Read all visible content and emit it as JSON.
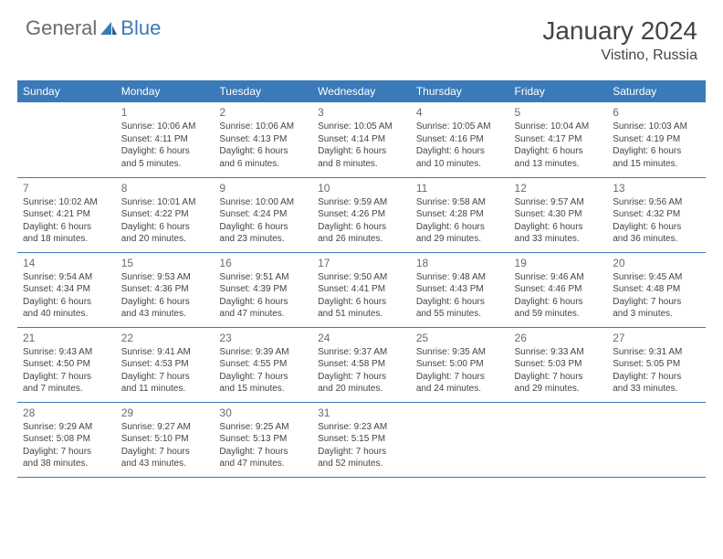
{
  "brand": {
    "name_a": "General",
    "name_b": "Blue"
  },
  "header": {
    "title": "January 2024",
    "location": "Vistino, Russia"
  },
  "colors": {
    "accent": "#3a7ab8",
    "text": "#444444",
    "muted": "#6b6b6b",
    "bg": "#ffffff"
  },
  "days": [
    "Sunday",
    "Monday",
    "Tuesday",
    "Wednesday",
    "Thursday",
    "Friday",
    "Saturday"
  ],
  "cells": [
    {
      "d": "",
      "l1": "",
      "l2": "",
      "l3": "",
      "l4": ""
    },
    {
      "d": "1",
      "l1": "Sunrise: 10:06 AM",
      "l2": "Sunset: 4:11 PM",
      "l3": "Daylight: 6 hours",
      "l4": "and 5 minutes."
    },
    {
      "d": "2",
      "l1": "Sunrise: 10:06 AM",
      "l2": "Sunset: 4:13 PM",
      "l3": "Daylight: 6 hours",
      "l4": "and 6 minutes."
    },
    {
      "d": "3",
      "l1": "Sunrise: 10:05 AM",
      "l2": "Sunset: 4:14 PM",
      "l3": "Daylight: 6 hours",
      "l4": "and 8 minutes."
    },
    {
      "d": "4",
      "l1": "Sunrise: 10:05 AM",
      "l2": "Sunset: 4:16 PM",
      "l3": "Daylight: 6 hours",
      "l4": "and 10 minutes."
    },
    {
      "d": "5",
      "l1": "Sunrise: 10:04 AM",
      "l2": "Sunset: 4:17 PM",
      "l3": "Daylight: 6 hours",
      "l4": "and 13 minutes."
    },
    {
      "d": "6",
      "l1": "Sunrise: 10:03 AM",
      "l2": "Sunset: 4:19 PM",
      "l3": "Daylight: 6 hours",
      "l4": "and 15 minutes."
    },
    {
      "d": "7",
      "l1": "Sunrise: 10:02 AM",
      "l2": "Sunset: 4:21 PM",
      "l3": "Daylight: 6 hours",
      "l4": "and 18 minutes."
    },
    {
      "d": "8",
      "l1": "Sunrise: 10:01 AM",
      "l2": "Sunset: 4:22 PM",
      "l3": "Daylight: 6 hours",
      "l4": "and 20 minutes."
    },
    {
      "d": "9",
      "l1": "Sunrise: 10:00 AM",
      "l2": "Sunset: 4:24 PM",
      "l3": "Daylight: 6 hours",
      "l4": "and 23 minutes."
    },
    {
      "d": "10",
      "l1": "Sunrise: 9:59 AM",
      "l2": "Sunset: 4:26 PM",
      "l3": "Daylight: 6 hours",
      "l4": "and 26 minutes."
    },
    {
      "d": "11",
      "l1": "Sunrise: 9:58 AM",
      "l2": "Sunset: 4:28 PM",
      "l3": "Daylight: 6 hours",
      "l4": "and 29 minutes."
    },
    {
      "d": "12",
      "l1": "Sunrise: 9:57 AM",
      "l2": "Sunset: 4:30 PM",
      "l3": "Daylight: 6 hours",
      "l4": "and 33 minutes."
    },
    {
      "d": "13",
      "l1": "Sunrise: 9:56 AM",
      "l2": "Sunset: 4:32 PM",
      "l3": "Daylight: 6 hours",
      "l4": "and 36 minutes."
    },
    {
      "d": "14",
      "l1": "Sunrise: 9:54 AM",
      "l2": "Sunset: 4:34 PM",
      "l3": "Daylight: 6 hours",
      "l4": "and 40 minutes."
    },
    {
      "d": "15",
      "l1": "Sunrise: 9:53 AM",
      "l2": "Sunset: 4:36 PM",
      "l3": "Daylight: 6 hours",
      "l4": "and 43 minutes."
    },
    {
      "d": "16",
      "l1": "Sunrise: 9:51 AM",
      "l2": "Sunset: 4:39 PM",
      "l3": "Daylight: 6 hours",
      "l4": "and 47 minutes."
    },
    {
      "d": "17",
      "l1": "Sunrise: 9:50 AM",
      "l2": "Sunset: 4:41 PM",
      "l3": "Daylight: 6 hours",
      "l4": "and 51 minutes."
    },
    {
      "d": "18",
      "l1": "Sunrise: 9:48 AM",
      "l2": "Sunset: 4:43 PM",
      "l3": "Daylight: 6 hours",
      "l4": "and 55 minutes."
    },
    {
      "d": "19",
      "l1": "Sunrise: 9:46 AM",
      "l2": "Sunset: 4:46 PM",
      "l3": "Daylight: 6 hours",
      "l4": "and 59 minutes."
    },
    {
      "d": "20",
      "l1": "Sunrise: 9:45 AM",
      "l2": "Sunset: 4:48 PM",
      "l3": "Daylight: 7 hours",
      "l4": "and 3 minutes."
    },
    {
      "d": "21",
      "l1": "Sunrise: 9:43 AM",
      "l2": "Sunset: 4:50 PM",
      "l3": "Daylight: 7 hours",
      "l4": "and 7 minutes."
    },
    {
      "d": "22",
      "l1": "Sunrise: 9:41 AM",
      "l2": "Sunset: 4:53 PM",
      "l3": "Daylight: 7 hours",
      "l4": "and 11 minutes."
    },
    {
      "d": "23",
      "l1": "Sunrise: 9:39 AM",
      "l2": "Sunset: 4:55 PM",
      "l3": "Daylight: 7 hours",
      "l4": "and 15 minutes."
    },
    {
      "d": "24",
      "l1": "Sunrise: 9:37 AM",
      "l2": "Sunset: 4:58 PM",
      "l3": "Daylight: 7 hours",
      "l4": "and 20 minutes."
    },
    {
      "d": "25",
      "l1": "Sunrise: 9:35 AM",
      "l2": "Sunset: 5:00 PM",
      "l3": "Daylight: 7 hours",
      "l4": "and 24 minutes."
    },
    {
      "d": "26",
      "l1": "Sunrise: 9:33 AM",
      "l2": "Sunset: 5:03 PM",
      "l3": "Daylight: 7 hours",
      "l4": "and 29 minutes."
    },
    {
      "d": "27",
      "l1": "Sunrise: 9:31 AM",
      "l2": "Sunset: 5:05 PM",
      "l3": "Daylight: 7 hours",
      "l4": "and 33 minutes."
    },
    {
      "d": "28",
      "l1": "Sunrise: 9:29 AM",
      "l2": "Sunset: 5:08 PM",
      "l3": "Daylight: 7 hours",
      "l4": "and 38 minutes."
    },
    {
      "d": "29",
      "l1": "Sunrise: 9:27 AM",
      "l2": "Sunset: 5:10 PM",
      "l3": "Daylight: 7 hours",
      "l4": "and 43 minutes."
    },
    {
      "d": "30",
      "l1": "Sunrise: 9:25 AM",
      "l2": "Sunset: 5:13 PM",
      "l3": "Daylight: 7 hours",
      "l4": "and 47 minutes."
    },
    {
      "d": "31",
      "l1": "Sunrise: 9:23 AM",
      "l2": "Sunset: 5:15 PM",
      "l3": "Daylight: 7 hours",
      "l4": "and 52 minutes."
    },
    {
      "d": "",
      "l1": "",
      "l2": "",
      "l3": "",
      "l4": ""
    },
    {
      "d": "",
      "l1": "",
      "l2": "",
      "l3": "",
      "l4": ""
    },
    {
      "d": "",
      "l1": "",
      "l2": "",
      "l3": "",
      "l4": ""
    }
  ]
}
